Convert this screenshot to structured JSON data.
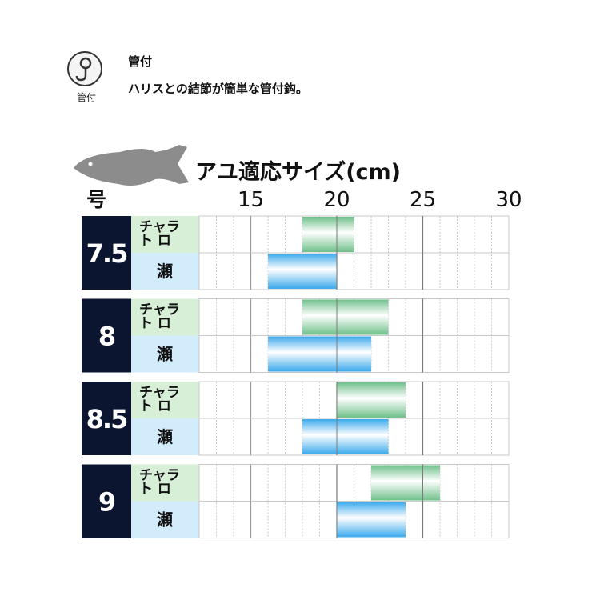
{
  "header": {
    "tag_label": "管付",
    "title": "管付",
    "description": "ハリスとの結節が簡単な管付鈎。"
  },
  "colors": {
    "navy": "#0b1530",
    "light_blue_cell": "#d3ecfb",
    "light_green_cell": "#d6efd6",
    "grid": "#c8c8c8",
    "bar_green": "#7fc99a",
    "bar_blue": "#55b6ef",
    "fish": "#8c8c8c"
  },
  "chart_data": {
    "type": "bar",
    "orientation": "horizontal-range",
    "title": "アユ適応サイズ(cm)",
    "ylabel": "号",
    "x_ticks": [
      "15",
      "20",
      "25",
      "30"
    ],
    "xlim": [
      12,
      30
    ],
    "grid": true,
    "rows": [
      {
        "size": "7.5",
        "chara_label": "チャラ\nト ロ",
        "se_label": "瀬",
        "chara_range": [
          18,
          21
        ],
        "se_range": [
          16,
          20
        ]
      },
      {
        "size": "8",
        "chara_label": "チャラ\nト ロ",
        "se_label": "瀬",
        "chara_range": [
          18,
          23
        ],
        "se_range": [
          16,
          22
        ]
      },
      {
        "size": "8.5",
        "chara_label": "チャラ\nト ロ",
        "se_label": "瀬",
        "chara_range": [
          20,
          24
        ],
        "se_range": [
          18,
          23
        ]
      },
      {
        "size": "9",
        "chara_label": "チャラ\nト ロ",
        "se_label": "瀬",
        "chara_range": [
          22,
          26
        ],
        "se_range": [
          20,
          24
        ]
      }
    ]
  }
}
